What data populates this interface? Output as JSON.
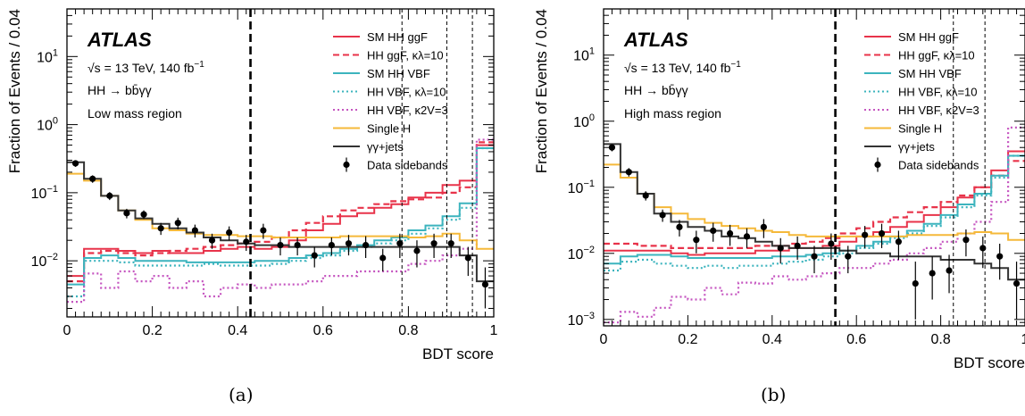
{
  "chart_data": [
    {
      "type": "line",
      "panel_caption": "(a)",
      "xlabel": "BDT score",
      "ylabel": "Fraction of Events / 0.04",
      "xlim": [
        0,
        1
      ],
      "ylim": [
        0.0015,
        50
      ],
      "y_scale": "log",
      "x_ticks": [
        0,
        0.2,
        0.4,
        0.6,
        0.8,
        1
      ],
      "x_tick_labels": [
        "0",
        "0.2",
        "0.4",
        "0.6",
        "0.8",
        "1"
      ],
      "y_ticks": [
        0.01,
        0.1,
        1,
        10
      ],
      "y_tick_labels": [
        "10",
        "10",
        "10",
        "10"
      ],
      "y_tick_exponents": [
        "-2",
        "-1",
        "0",
        "1"
      ],
      "annotations": {
        "experiment": "ATLAS",
        "energy": "√s = 13 TeV, 140 fb",
        "energy_sup": "−1",
        "process": "HH → bb̄γγ",
        "region": "Low mass region"
      },
      "legend_position": "top-right",
      "legend": [
        {
          "label": "SM HH ggF",
          "color": "#e8334a",
          "style": "solid"
        },
        {
          "label": "HH ggF, κλ=10",
          "color": "#e8334a",
          "style": "dashed"
        },
        {
          "label": "SM HH VBF",
          "color": "#3cb4be",
          "style": "solid"
        },
        {
          "label": "HH VBF, κλ=10",
          "color": "#3cb4be",
          "style": "dotted"
        },
        {
          "label": "HH VBF, κ2V=3",
          "color": "#c555c0",
          "style": "dotted"
        },
        {
          "label": "Single H",
          "color": "#f5b93a",
          "style": "solid"
        },
        {
          "label": "γγ+jets",
          "color": "#333333",
          "style": "solid"
        },
        {
          "label": "Data sidebands",
          "color": "#000000",
          "style": "marker"
        }
      ],
      "category_boundaries": [
        {
          "x": 0.43,
          "style": "thick-dashed"
        },
        {
          "x": 0.785,
          "style": "thin-dashed"
        },
        {
          "x": 0.89,
          "style": "thin-dashed"
        },
        {
          "x": 0.95,
          "style": "thin-dashed"
        }
      ],
      "bin_edges": [
        0,
        0.04,
        0.08,
        0.12,
        0.16,
        0.2,
        0.24,
        0.28,
        0.32,
        0.36,
        0.4,
        0.44,
        0.48,
        0.52,
        0.56,
        0.6,
        0.64,
        0.68,
        0.72,
        0.76,
        0.8,
        0.84,
        0.88,
        0.92,
        0.96,
        1.0
      ],
      "series": [
        {
          "name": "SM HH ggF",
          "color": "#e8334a",
          "style": "solid",
          "values": [
            0.006,
            0.015,
            0.015,
            0.014,
            0.013,
            0.014,
            0.013,
            0.013,
            0.014,
            0.015,
            0.016,
            0.015,
            0.016,
            0.02,
            0.028,
            0.035,
            0.045,
            0.05,
            0.06,
            0.068,
            0.085,
            0.1,
            0.13,
            0.15,
            0.5
          ]
        },
        {
          "name": "HH ggF, κλ=10",
          "color": "#e8334a",
          "style": "dashed",
          "values": [
            0.005,
            0.013,
            0.014,
            0.013,
            0.012,
            0.013,
            0.014,
            0.015,
            0.016,
            0.017,
            0.018,
            0.019,
            0.022,
            0.028,
            0.036,
            0.045,
            0.055,
            0.06,
            0.068,
            0.075,
            0.08,
            0.085,
            0.1,
            0.12,
            0.55
          ]
        },
        {
          "name": "SM HH VBF",
          "color": "#3cb4be",
          "style": "solid",
          "values": [
            0.0045,
            0.011,
            0.012,
            0.011,
            0.01,
            0.01,
            0.01,
            0.0095,
            0.0095,
            0.0095,
            0.0095,
            0.01,
            0.01,
            0.011,
            0.012,
            0.013,
            0.015,
            0.017,
            0.02,
            0.022,
            0.028,
            0.033,
            0.045,
            0.07,
            0.45
          ]
        },
        {
          "name": "HH VBF, κλ=10",
          "color": "#3cb4be",
          "style": "dotted",
          "values": [
            0.003,
            0.01,
            0.01,
            0.0095,
            0.0085,
            0.0085,
            0.0085,
            0.0085,
            0.009,
            0.0085,
            0.0085,
            0.0085,
            0.009,
            0.01,
            0.011,
            0.012,
            0.014,
            0.016,
            0.018,
            0.02,
            0.025,
            0.03,
            0.04,
            0.06,
            0.45
          ]
        },
        {
          "name": "HH VBF, κ2V=3",
          "color": "#c555c0",
          "style": "dotted",
          "values": [
            0.0025,
            0.0065,
            0.004,
            0.007,
            0.005,
            0.006,
            0.004,
            0.005,
            0.003,
            0.004,
            0.0045,
            0.004,
            0.0045,
            0.0045,
            0.005,
            0.006,
            0.006,
            0.007,
            0.007,
            0.007,
            0.009,
            0.01,
            0.012,
            0.015,
            0.6
          ]
        },
        {
          "name": "Single H",
          "color": "#f5b93a",
          "style": "solid",
          "values": [
            0.19,
            0.15,
            0.09,
            0.055,
            0.04,
            0.03,
            0.028,
            0.025,
            0.024,
            0.024,
            0.023,
            0.023,
            0.022,
            0.022,
            0.022,
            0.022,
            0.023,
            0.023,
            0.023,
            0.023,
            0.022,
            0.023,
            0.025,
            0.02,
            0.015
          ]
        },
        {
          "name": "γγ+jets",
          "color": "#333333",
          "style": "solid",
          "values": [
            0.28,
            0.16,
            0.09,
            0.055,
            0.042,
            0.035,
            0.03,
            0.026,
            0.022,
            0.02,
            0.018,
            0.017,
            0.017,
            0.016,
            0.016,
            0.016,
            0.016,
            0.016,
            0.016,
            0.016,
            0.016,
            0.016,
            0.016,
            0.012,
            0.005
          ]
        }
      ],
      "data_points": {
        "name": "Data sidebands",
        "x": [
          0.02,
          0.06,
          0.1,
          0.14,
          0.18,
          0.22,
          0.26,
          0.3,
          0.34,
          0.38,
          0.42,
          0.46,
          0.5,
          0.54,
          0.58,
          0.62,
          0.66,
          0.7,
          0.74,
          0.78,
          0.82,
          0.86,
          0.9,
          0.94,
          0.98
        ],
        "y": [
          0.27,
          0.16,
          0.09,
          0.05,
          0.048,
          0.03,
          0.036,
          0.028,
          0.02,
          0.026,
          0.019,
          0.028,
          0.017,
          0.017,
          0.012,
          0.017,
          0.018,
          0.017,
          0.011,
          0.018,
          0.014,
          0.018,
          0.018,
          0.011,
          0.0045
        ],
        "err_lo": [
          0.03,
          0.02,
          0.012,
          0.008,
          0.007,
          0.006,
          0.007,
          0.006,
          0.005,
          0.006,
          0.005,
          0.007,
          0.005,
          0.005,
          0.004,
          0.005,
          0.006,
          0.006,
          0.004,
          0.007,
          0.006,
          0.007,
          0.007,
          0.005,
          0.0025
        ],
        "err_hi": [
          0.03,
          0.02,
          0.012,
          0.008,
          0.007,
          0.006,
          0.007,
          0.006,
          0.005,
          0.006,
          0.005,
          0.007,
          0.005,
          0.005,
          0.004,
          0.005,
          0.006,
          0.006,
          0.004,
          0.007,
          0.006,
          0.007,
          0.007,
          0.005,
          0.0035
        ]
      }
    },
    {
      "type": "line",
      "panel_caption": "(b)",
      "xlabel": "BDT score",
      "ylabel": "Fraction of Events / 0.04",
      "xlim": [
        0,
        1
      ],
      "ylim": [
        0.0008,
        50
      ],
      "y_scale": "log",
      "x_ticks": [
        0,
        0.2,
        0.4,
        0.6,
        0.8,
        1
      ],
      "x_tick_labels": [
        "0",
        "0.2",
        "0.4",
        "0.6",
        "0.8",
        "1"
      ],
      "y_ticks": [
        0.001,
        0.01,
        0.1,
        1,
        10
      ],
      "y_tick_labels": [
        "10",
        "10",
        "10",
        "10",
        "10"
      ],
      "y_tick_exponents": [
        "-3",
        "-2",
        "-1",
        "0",
        "1"
      ],
      "annotations": {
        "experiment": "ATLAS",
        "energy": "√s = 13 TeV, 140 fb",
        "energy_sup": "−1",
        "process": "HH → bb̄γγ",
        "region": "High mass region"
      },
      "legend_position": "top-right",
      "legend": [
        {
          "label": "SM HH ggF",
          "color": "#e8334a",
          "style": "solid"
        },
        {
          "label": "HH ggF, κλ=10",
          "color": "#e8334a",
          "style": "dashed"
        },
        {
          "label": "SM HH VBF",
          "color": "#3cb4be",
          "style": "solid"
        },
        {
          "label": "HH VBF, κλ=10",
          "color": "#3cb4be",
          "style": "dotted"
        },
        {
          "label": "HH VBF, κ2V=3",
          "color": "#c555c0",
          "style": "dotted"
        },
        {
          "label": "Single H",
          "color": "#f5b93a",
          "style": "solid"
        },
        {
          "label": "γγ+jets",
          "color": "#333333",
          "style": "solid"
        },
        {
          "label": "Data sidebands",
          "color": "#000000",
          "style": "marker"
        }
      ],
      "category_boundaries": [
        {
          "x": 0.55,
          "style": "thick-dashed"
        },
        {
          "x": 0.83,
          "style": "thin-dashed"
        },
        {
          "x": 0.905,
          "style": "thin-dashed"
        }
      ],
      "bin_edges": [
        0,
        0.04,
        0.08,
        0.12,
        0.16,
        0.2,
        0.24,
        0.28,
        0.32,
        0.36,
        0.4,
        0.44,
        0.48,
        0.52,
        0.56,
        0.6,
        0.64,
        0.68,
        0.72,
        0.76,
        0.8,
        0.84,
        0.88,
        0.92,
        0.96,
        1.0
      ],
      "series": [
        {
          "name": "SM HH ggF",
          "color": "#e8334a",
          "style": "solid",
          "values": [
            0.011,
            0.011,
            0.011,
            0.011,
            0.01,
            0.0095,
            0.01,
            0.01,
            0.01,
            0.011,
            0.011,
            0.012,
            0.012,
            0.013,
            0.015,
            0.018,
            0.021,
            0.025,
            0.03,
            0.038,
            0.05,
            0.07,
            0.1,
            0.18,
            0.35
          ]
        },
        {
          "name": "HH ggF, κλ=10",
          "color": "#e8334a",
          "style": "dashed",
          "values": [
            0.014,
            0.014,
            0.013,
            0.013,
            0.012,
            0.012,
            0.012,
            0.012,
            0.012,
            0.013,
            0.013,
            0.014,
            0.015,
            0.017,
            0.02,
            0.024,
            0.03,
            0.035,
            0.042,
            0.05,
            0.06,
            0.075,
            0.1,
            0.15,
            0.25
          ]
        },
        {
          "name": "SM HH VBF",
          "color": "#3cb4be",
          "style": "solid",
          "values": [
            0.007,
            0.009,
            0.0095,
            0.0095,
            0.009,
            0.0085,
            0.0085,
            0.0085,
            0.0085,
            0.0085,
            0.009,
            0.009,
            0.0095,
            0.01,
            0.011,
            0.013,
            0.015,
            0.018,
            0.022,
            0.028,
            0.038,
            0.055,
            0.08,
            0.15,
            0.3
          ]
        },
        {
          "name": "HH VBF, κλ=10",
          "color": "#3cb4be",
          "style": "dotted",
          "values": [
            0.0055,
            0.0075,
            0.008,
            0.007,
            0.0065,
            0.006,
            0.0065,
            0.006,
            0.0065,
            0.0065,
            0.007,
            0.0075,
            0.008,
            0.009,
            0.01,
            0.012,
            0.014,
            0.017,
            0.02,
            0.026,
            0.035,
            0.05,
            0.075,
            0.14,
            0.3
          ]
        },
        {
          "name": "HH VBF, κ2V=3",
          "color": "#c555c0",
          "style": "dotted",
          "values": [
            0.0009,
            0.0013,
            0.0011,
            0.0015,
            0.0022,
            0.002,
            0.003,
            0.0024,
            0.0036,
            0.0035,
            0.0045,
            0.004,
            0.0045,
            0.005,
            0.006,
            0.006,
            0.007,
            0.008,
            0.01,
            0.012,
            0.015,
            0.02,
            0.03,
            0.06,
            0.8
          ]
        },
        {
          "name": "Single H",
          "color": "#f5b93a",
          "style": "solid",
          "values": [
            0.22,
            0.14,
            0.08,
            0.05,
            0.04,
            0.033,
            0.029,
            0.026,
            0.024,
            0.022,
            0.021,
            0.019,
            0.018,
            0.018,
            0.018,
            0.018,
            0.018,
            0.018,
            0.019,
            0.019,
            0.019,
            0.02,
            0.021,
            0.02,
            0.016
          ]
        },
        {
          "name": "γγ+jets",
          "color": "#333333",
          "style": "solid",
          "values": [
            0.45,
            0.17,
            0.08,
            0.04,
            0.03,
            0.025,
            0.022,
            0.018,
            0.017,
            0.015,
            0.013,
            0.012,
            0.012,
            0.012,
            0.011,
            0.01,
            0.01,
            0.009,
            0.009,
            0.009,
            0.008,
            0.008,
            0.007,
            0.006,
            0.004
          ]
        }
      ],
      "data_points": {
        "name": "Data sidebands",
        "x": [
          0.02,
          0.06,
          0.1,
          0.14,
          0.18,
          0.22,
          0.26,
          0.3,
          0.34,
          0.38,
          0.42,
          0.46,
          0.5,
          0.54,
          0.58,
          0.62,
          0.66,
          0.7,
          0.74,
          0.78,
          0.82,
          0.86,
          0.9,
          0.94,
          0.98
        ],
        "y": [
          0.4,
          0.17,
          0.075,
          0.038,
          0.025,
          0.016,
          0.022,
          0.02,
          0.018,
          0.025,
          0.012,
          0.013,
          0.009,
          0.014,
          0.009,
          0.019,
          0.02,
          0.015,
          0.0035,
          0.005,
          0.0055,
          0.016,
          0.012,
          0.009,
          0.0035
        ],
        "err_lo": [
          0.05,
          0.025,
          0.012,
          0.008,
          0.007,
          0.006,
          0.007,
          0.007,
          0.006,
          0.008,
          0.005,
          0.005,
          0.004,
          0.006,
          0.004,
          0.007,
          0.008,
          0.007,
          0.0025,
          0.003,
          0.003,
          0.007,
          0.006,
          0.005,
          0.0025
        ],
        "err_hi": [
          0.05,
          0.025,
          0.012,
          0.008,
          0.007,
          0.006,
          0.007,
          0.007,
          0.006,
          0.008,
          0.005,
          0.005,
          0.004,
          0.006,
          0.004,
          0.007,
          0.008,
          0.007,
          0.004,
          0.004,
          0.004,
          0.007,
          0.006,
          0.005,
          0.004
        ]
      }
    }
  ]
}
